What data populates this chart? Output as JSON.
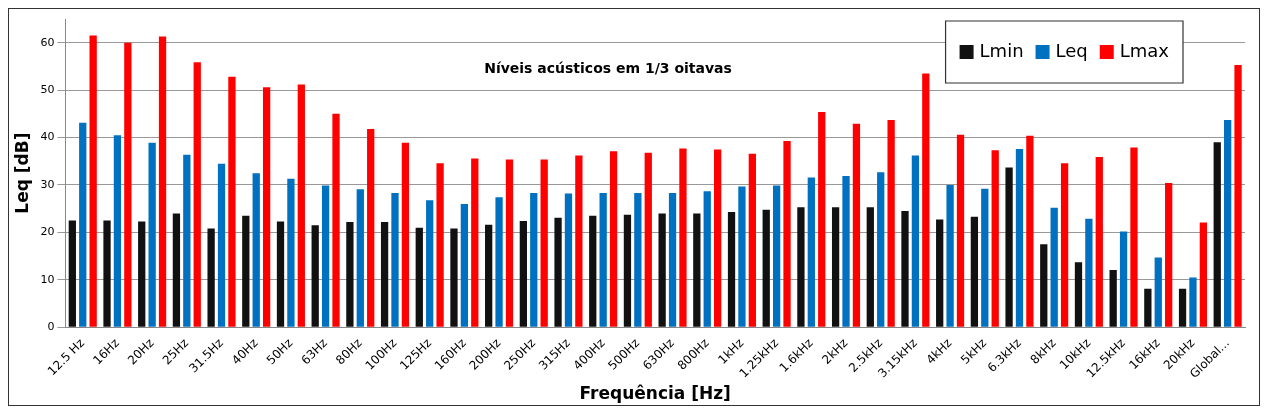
{
  "chart_data": {
    "type": "bar",
    "title": "Níveis acústicos em 1/3 oitavas",
    "xlabel": "Frequência [Hz]",
    "ylabel": "Leq [dB]",
    "categories": [
      "12.5 Hz",
      "16Hz",
      "20Hz",
      "25Hz",
      "31.5Hz",
      "40Hz",
      "50Hz",
      "63Hz",
      "80Hz",
      "100Hz",
      "125Hz",
      "160Hz",
      "200Hz",
      "250Hz",
      "315Hz",
      "400Hz",
      "500Hz",
      "630Hz",
      "800Hz",
      "1kHz",
      "1.25kHz",
      "1.6kHz",
      "2kHz",
      "2.5kHz",
      "3.15kHz",
      "4kHz",
      "5kHz",
      "6.3kHz",
      "8kHz",
      "10kHz",
      "12.5kHz",
      "16kHz",
      "20kHz",
      "Global..."
    ],
    "series": [
      {
        "name": "Lmin",
        "color": "#111111",
        "values": [
          22.5,
          22.5,
          22.3,
          24,
          20.8,
          23.5,
          22.3,
          21.5,
          22.2,
          22.2,
          21,
          20.8,
          21.6,
          22.4,
          23.1,
          23.5,
          23.7,
          24,
          24,
          24.3,
          24.8,
          25.3,
          25.3,
          25.3,
          24.5,
          22.7,
          23.3,
          33.7,
          17.5,
          13.7,
          12.1,
          8.1,
          8.1,
          39
        ]
      },
      {
        "name": "Leq",
        "color": "#0070c0",
        "values": [
          43.1,
          40.5,
          38.9,
          36.4,
          34.5,
          32.5,
          31.3,
          29.9,
          29.1,
          28.3,
          26.8,
          26,
          27.4,
          28.3,
          28.2,
          28.3,
          28.3,
          28.3,
          28.7,
          29.7,
          29.9,
          31.6,
          31.9,
          32.7,
          36.2,
          30,
          29.2,
          37.6,
          25.2,
          22.9,
          20.2,
          14.7,
          10.5,
          43.7
        ]
      },
      {
        "name": "Lmax",
        "color": "#ff0000",
        "values": [
          61.5,
          60,
          61.3,
          55.9,
          52.8,
          50.6,
          51.2,
          45,
          41.8,
          38.9,
          34.6,
          35.6,
          35.4,
          35.4,
          36.2,
          37.1,
          36.8,
          37.7,
          37.5,
          36.6,
          39.3,
          45.4,
          42.9,
          43.7,
          53.5,
          40.6,
          37.3,
          40.4,
          34.6,
          35.9,
          37.9,
          30.4,
          22.1,
          55.3
        ]
      }
    ],
    "ylim": [
      0,
      65
    ],
    "yticks": [
      0,
      10,
      20,
      30,
      40,
      50,
      60
    ],
    "grid": "y",
    "legend": "top right"
  }
}
